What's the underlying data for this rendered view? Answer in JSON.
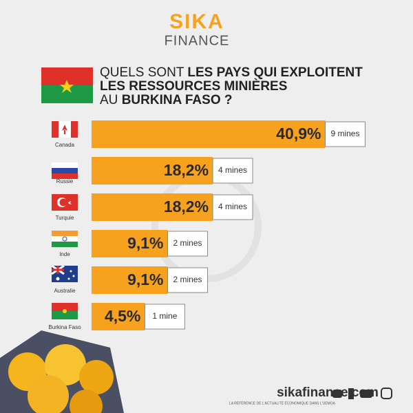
{
  "brand": {
    "name": "SIKA",
    "subname": "FINANCE"
  },
  "chart_data": {
    "type": "bar",
    "title_parts": [
      {
        "text": "QUELS SONT ",
        "bold": false
      },
      {
        "text": "LES PAYS QUI EXPLOITENT",
        "bold": true
      },
      {
        "text": "LES RESSOURCES MINIÈRES",
        "bold": true
      },
      {
        "text": "AU ",
        "bold": false
      },
      {
        "text": "BURKINA FASO ?",
        "bold": true
      }
    ],
    "categories": [
      "Canada",
      "Russie",
      "Turquie",
      "Inde",
      "Australie",
      "Burkina Faso"
    ],
    "values": [
      40.9,
      18.2,
      18.2,
      9.1,
      9.1,
      4.5
    ],
    "value_labels": [
      "40,9%",
      "18,2%",
      "18,2%",
      "9,1%",
      "9,1%",
      "4,5%"
    ],
    "mine_labels": [
      "9 mines",
      "4 mines",
      "4 mines",
      "2 mines",
      "2 mines",
      "1 mine"
    ],
    "color": "#f6a21e"
  },
  "footer": {
    "site": "sikafinance.com",
    "tagline": "LA RÉFÉRENCE DE L'ACTUALITÉ ÉCONOMIQUE DANS L'UEMOA"
  }
}
